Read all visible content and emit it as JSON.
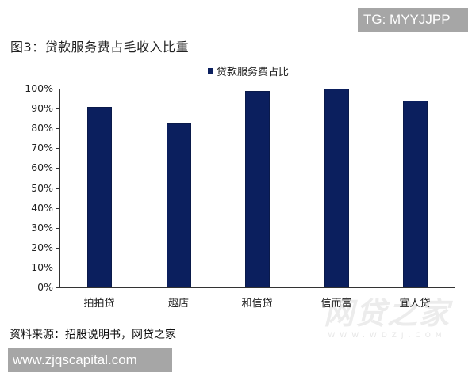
{
  "badges": {
    "top": "TG: MYYJJPP",
    "bottom": "www.zjqscapital.com"
  },
  "figure": {
    "title": "图3：贷款服务费占毛收入比重",
    "source": "资料来源：招股说明书，网贷之家"
  },
  "watermark": {
    "main": "网贷之家",
    "sub": "WWW.WDZJ.COM"
  },
  "colors": {
    "bar": "#0b1f5e",
    "badge": "#a6a6a6",
    "axis": "#333333"
  },
  "chart_data": {
    "type": "bar",
    "title": "图3：贷款服务费占毛收入比重",
    "categories": [
      "拍拍贷",
      "趣店",
      "和信贷",
      "信而富",
      "宜人贷"
    ],
    "series": [
      {
        "name": "贷款服务费占比",
        "values": [
          0.91,
          0.83,
          0.99,
          1.0,
          0.94
        ],
        "color": "#0b1f5e"
      }
    ],
    "xlabel": "",
    "ylabel": "",
    "ylim": [
      0,
      1.0
    ],
    "y_ticks": [
      "0%",
      "10%",
      "20%",
      "30%",
      "40%",
      "50%",
      "60%",
      "70%",
      "80%",
      "90%",
      "100%"
    ],
    "grid": false,
    "legend_position": "top-center",
    "legend": [
      "贷款服务费占比"
    ]
  }
}
